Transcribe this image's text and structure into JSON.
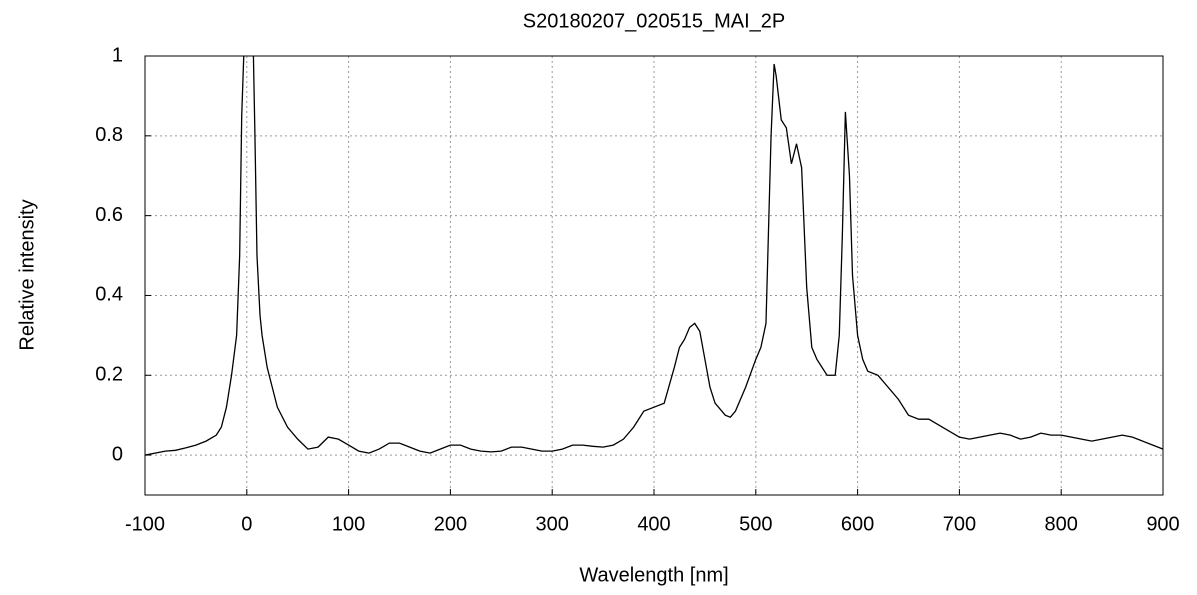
{
  "chart_data": {
    "type": "line",
    "title": "S20180207_020515_MAI_2P",
    "xlabel": "Wavelength [nm]",
    "ylabel": "Relative intensity",
    "color": "#000000",
    "grid": true,
    "xlim": [
      -100,
      900
    ],
    "xticks": [
      -100,
      0,
      100,
      200,
      300,
      400,
      500,
      600,
      700,
      800,
      900
    ],
    "ylim": [
      -0.1,
      1
    ],
    "yticks": [
      0,
      0.2,
      0.4,
      0.6,
      0.8,
      1
    ],
    "x": [
      -100,
      -90,
      -80,
      -70,
      -60,
      -50,
      -40,
      -30,
      -25,
      -20,
      -15,
      -10,
      -7,
      -5,
      -3,
      0,
      5,
      8,
      10,
      13,
      15,
      20,
      25,
      30,
      40,
      50,
      60,
      70,
      80,
      90,
      100,
      110,
      120,
      130,
      140,
      150,
      160,
      170,
      180,
      190,
      200,
      210,
      220,
      230,
      240,
      250,
      260,
      270,
      280,
      290,
      300,
      310,
      320,
      330,
      340,
      350,
      360,
      370,
      380,
      390,
      400,
      410,
      420,
      425,
      430,
      435,
      440,
      445,
      450,
      455,
      460,
      470,
      475,
      480,
      490,
      500,
      505,
      510,
      515,
      518,
      520,
      525,
      530,
      535,
      540,
      545,
      550,
      555,
      560,
      570,
      578,
      582,
      585,
      588,
      592,
      595,
      600,
      605,
      610,
      620,
      630,
      640,
      650,
      660,
      670,
      680,
      690,
      700,
      710,
      720,
      730,
      740,
      750,
      760,
      770,
      780,
      790,
      800,
      810,
      820,
      830,
      840,
      850,
      860,
      870,
      880,
      890,
      900
    ],
    "values": [
      0,
      0.005,
      0.01,
      0.012,
      0.018,
      0.025,
      0.035,
      0.05,
      0.07,
      0.12,
      0.2,
      0.3,
      0.5,
      0.85,
      1.0,
      1.3,
      1.2,
      0.8,
      0.5,
      0.35,
      0.3,
      0.22,
      0.17,
      0.12,
      0.07,
      0.04,
      0.015,
      0.02,
      0.045,
      0.04,
      0.025,
      0.01,
      0.005,
      0.015,
      0.03,
      0.03,
      0.02,
      0.01,
      0.005,
      0.015,
      0.025,
      0.025,
      0.015,
      0.01,
      0.008,
      0.01,
      0.02,
      0.02,
      0.015,
      0.01,
      0.01,
      0.015,
      0.025,
      0.025,
      0.022,
      0.02,
      0.025,
      0.04,
      0.07,
      0.11,
      0.12,
      0.13,
      0.22,
      0.27,
      0.29,
      0.32,
      0.33,
      0.31,
      0.24,
      0.17,
      0.13,
      0.1,
      0.095,
      0.11,
      0.17,
      0.24,
      0.27,
      0.33,
      0.8,
      0.98,
      0.95,
      0.84,
      0.82,
      0.73,
      0.78,
      0.72,
      0.42,
      0.27,
      0.24,
      0.2,
      0.2,
      0.3,
      0.55,
      0.86,
      0.7,
      0.45,
      0.3,
      0.24,
      0.21,
      0.2,
      0.17,
      0.14,
      0.1,
      0.09,
      0.09,
      0.075,
      0.06,
      0.045,
      0.04,
      0.045,
      0.05,
      0.055,
      0.05,
      0.04,
      0.045,
      0.055,
      0.05,
      0.05,
      0.045,
      0.04,
      0.035,
      0.04,
      0.045,
      0.05,
      0.045,
      0.035,
      0.025,
      0.015
    ]
  }
}
